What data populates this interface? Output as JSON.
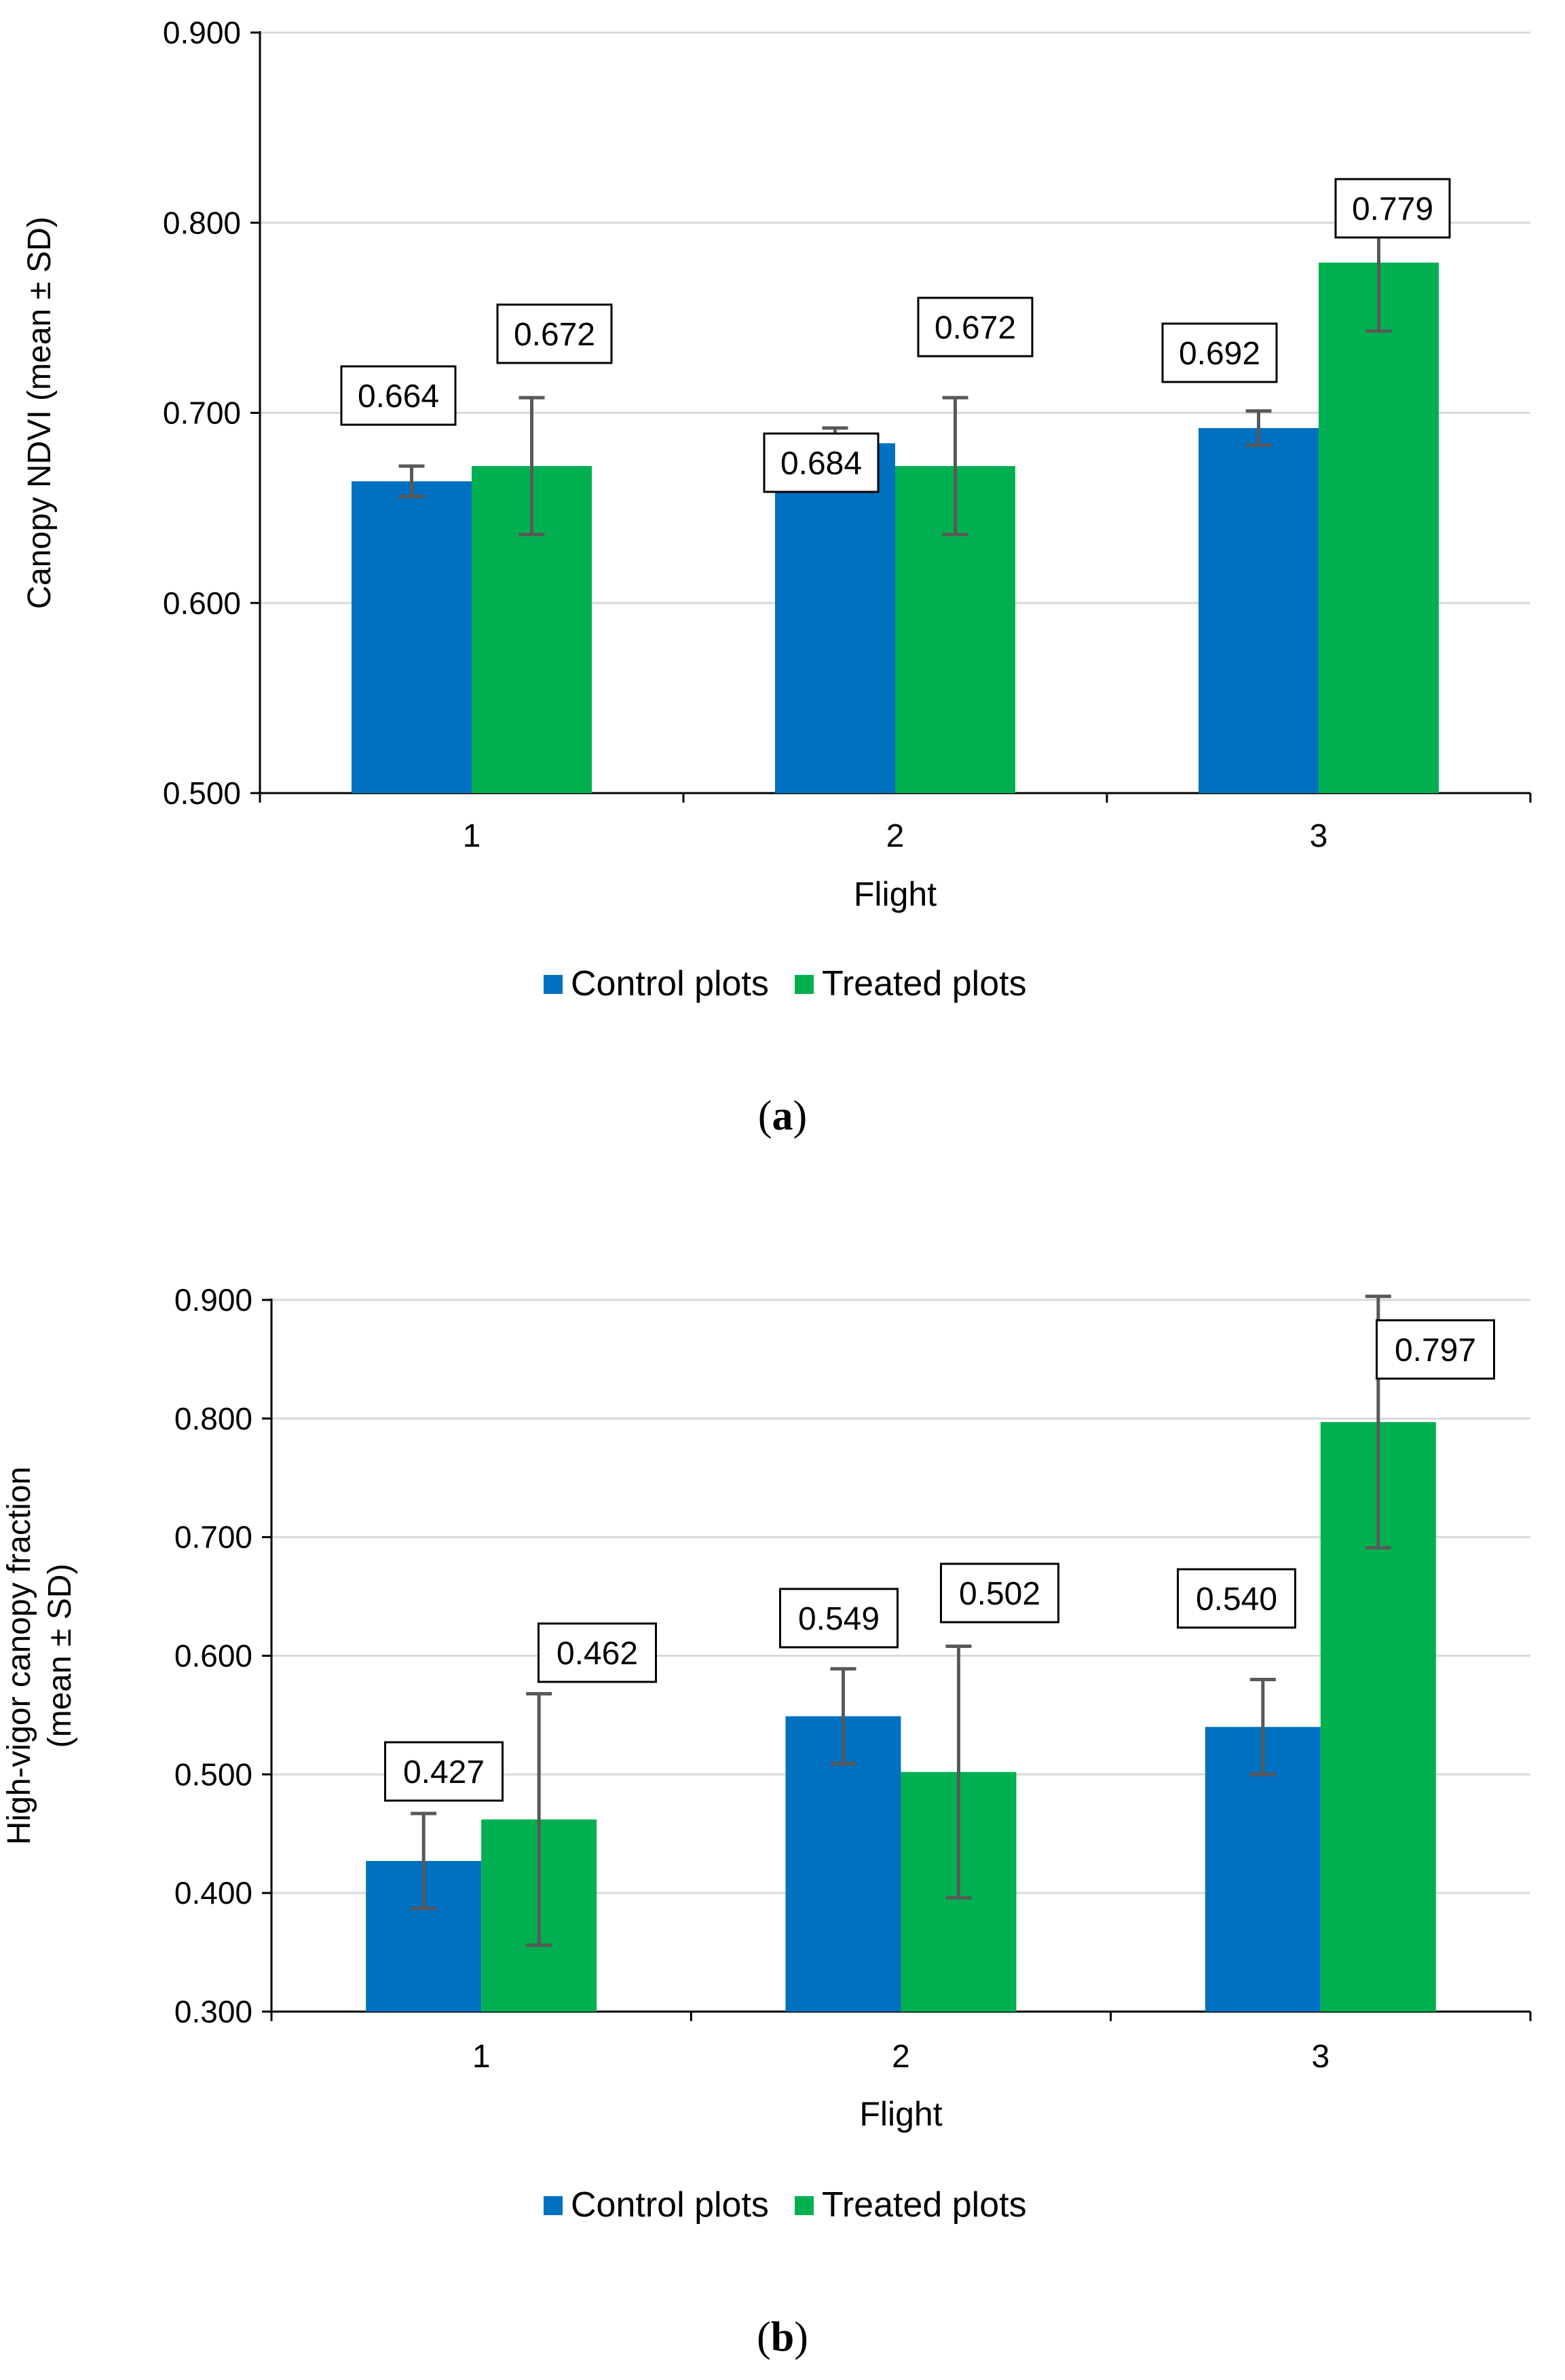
{
  "chart_data": [
    {
      "type": "bar",
      "panel_label": "a",
      "title": "",
      "xlabel": "Flight",
      "ylabel": "Canopy NDVI (mean ± SD)",
      "ylabel_lines": [
        "Canopy NDVI (mean ± SD)"
      ],
      "ylim": [
        0.5,
        0.9
      ],
      "yticks": [
        0.5,
        0.6,
        0.7,
        0.8,
        0.9
      ],
      "ytick_labels": [
        "0.500",
        "0.600",
        "0.700",
        "0.800",
        "0.900"
      ],
      "grid": true,
      "legend_position": "bottom",
      "categories": [
        "1",
        "2",
        "3"
      ],
      "series": [
        {
          "name": "Control plots",
          "color": "#0070C0",
          "values": [
            0.664,
            0.684,
            0.692
          ],
          "sd": [
            0.008,
            0.008,
            0.009
          ],
          "labels": [
            "0.664",
            "0.684",
            "0.692"
          ]
        },
        {
          "name": "Treated plots",
          "color": "#00B050",
          "values": [
            0.672,
            0.672,
            0.779
          ],
          "sd": [
            0.036,
            0.036,
            0.036
          ],
          "labels": [
            "0.672",
            "0.672",
            "0.779"
          ]
        }
      ]
    },
    {
      "type": "bar",
      "panel_label": "b",
      "title": "",
      "xlabel": "Flight",
      "ylabel": "High-vigor canopy fraction (mean ± SD)",
      "ylabel_lines": [
        "High-vigor canopy fraction",
        "(mean ± SD)"
      ],
      "ylim": [
        0.3,
        0.9
      ],
      "yticks": [
        0.3,
        0.4,
        0.5,
        0.6,
        0.7,
        0.8,
        0.9
      ],
      "ytick_labels": [
        "0.300",
        "0.400",
        "0.500",
        "0.600",
        "0.700",
        "0.800",
        "0.900"
      ],
      "grid": true,
      "legend_position": "bottom",
      "categories": [
        "1",
        "2",
        "3"
      ],
      "series": [
        {
          "name": "Control plots",
          "color": "#0070C0",
          "values": [
            0.427,
            0.549,
            0.54
          ],
          "sd": [
            0.04,
            0.04,
            0.04
          ],
          "labels": [
            "0.427",
            "0.549",
            "0.540"
          ]
        },
        {
          "name": "Treated plots",
          "color": "#00B050",
          "values": [
            0.462,
            0.502,
            0.797
          ],
          "sd": [
            0.106,
            0.106,
            0.106
          ],
          "labels": [
            "0.462",
            "0.502",
            "0.797"
          ]
        }
      ]
    }
  ]
}
